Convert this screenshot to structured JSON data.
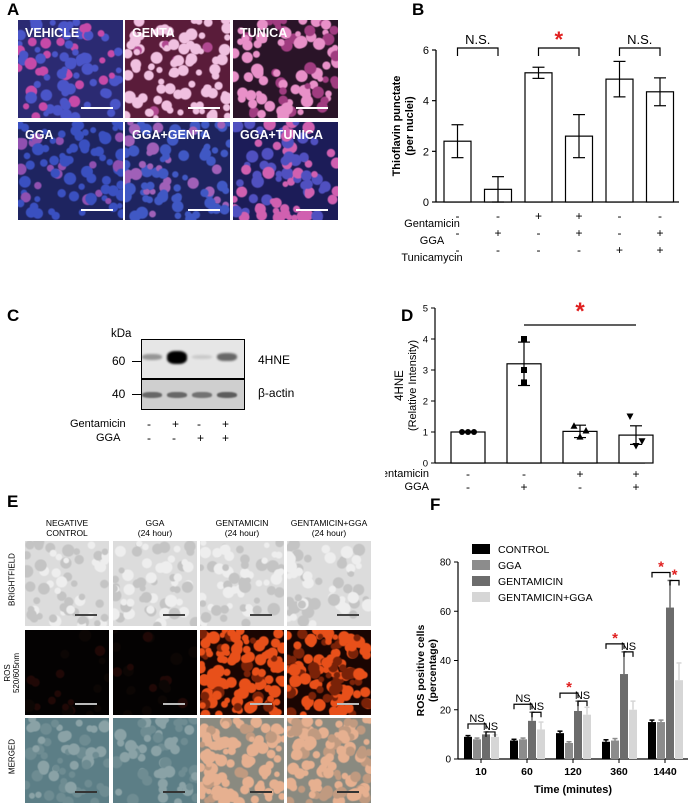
{
  "panel_a": {
    "label": "A",
    "tiles": [
      {
        "caption": "VEHICLE",
        "bg": "#2b2a72",
        "cells": "#4a55c8",
        "stain": "#c64aa8",
        "density": 0.25
      },
      {
        "caption": "GENTA",
        "bg": "#5a1c3a",
        "cells": "#b04890",
        "stain": "#f0c0e0",
        "density": 0.9
      },
      {
        "caption": "TUNICA",
        "bg": "#2a1428",
        "cells": "#a03c80",
        "stain": "#e890c8",
        "density": 0.7
      },
      {
        "caption": "GGA",
        "bg": "#1e2460",
        "cells": "#3a50c0",
        "stain": "#9050b0",
        "density": 0.2
      },
      {
        "caption": "GGA+GENTA",
        "bg": "#1e2460",
        "cells": "#4058c4",
        "stain": "#a060b8",
        "density": 0.25
      },
      {
        "caption": "GGA+TUNICA",
        "bg": "#1c1c58",
        "cells": "#5050c0",
        "stain": "#d060b0",
        "density": 0.5
      }
    ]
  },
  "panel_b": {
    "label": "B",
    "ylabel": "Thioflavin punctate\n(per nuclei)",
    "sig_labels": [
      "N.S.",
      "*",
      "N.S."
    ],
    "row_labels": [
      "Gentamicin",
      "GGA",
      "Tunicamycin"
    ],
    "signs": [
      [
        "-",
        "-",
        "+",
        "+",
        "-",
        "-"
      ],
      [
        "-",
        "+",
        "-",
        "+",
        "-",
        "+"
      ],
      [
        "-",
        "-",
        "-",
        "-",
        "+",
        "+"
      ]
    ]
  },
  "panel_c": {
    "label": "C",
    "kda_label": "kDa",
    "marker_60": "60",
    "marker_40": "40",
    "band_4hne": "4HNE",
    "band_actin": "β-actin",
    "row_labels": [
      "Gentamicin",
      "GGA"
    ],
    "signs": [
      [
        "-",
        "+",
        "-",
        "+"
      ],
      [
        "-",
        "-",
        "+",
        "+"
      ]
    ]
  },
  "panel_d": {
    "label": "D",
    "ylabel_1": "4HNE",
    "ylabel_2": "(Relative Intensity)",
    "sig_label": "*",
    "row_labels": [
      "Gentamicin",
      "GGA"
    ],
    "signs": [
      [
        "-",
        "-",
        "+",
        "+"
      ],
      [
        "-",
        "+",
        "-",
        "+"
      ]
    ]
  },
  "panel_e": {
    "label": "E",
    "col_labels": [
      "NEGATIVE\nCONTROL",
      "GGA\n(24 hour)",
      "GENTAMICIN\n(24 hour)",
      "GENTAMICIN+GGA\n(24 hour)"
    ],
    "row_labels": [
      "BRIGHTFIELD",
      "ROS\n520/605nm",
      "MERGED"
    ],
    "ros_intensity": [
      0.02,
      0.03,
      0.85,
      0.6
    ]
  },
  "panel_f": {
    "label": "F",
    "legend": [
      "CONTROL",
      "GGA",
      "GENTAMICIN",
      "GENTAMICIN+GGA"
    ],
    "ylabel": "ROS positive cells\n(percentage)",
    "xlabel": "Time (minutes)",
    "ns_label": "NS",
    "star_label": "*"
  },
  "chart_data": [
    {
      "type": "bar",
      "panel": "B",
      "ylabel": "Thioflavin punctate (per nuclei)",
      "ylim": [
        0,
        6
      ],
      "yticks": [
        "0",
        "2",
        "4",
        "6"
      ],
      "values": [
        2.4,
        0.5,
        5.1,
        2.6,
        4.85,
        4.35
      ],
      "errors": [
        0.65,
        0.5,
        0.22,
        0.85,
        0.7,
        0.55
      ],
      "significance": [
        {
          "pair": [
            0,
            1
          ],
          "label": "N.S."
        },
        {
          "pair": [
            2,
            3
          ],
          "label": "*"
        },
        {
          "pair": [
            4,
            5
          ],
          "label": "N.S."
        }
      ]
    },
    {
      "type": "bar",
      "panel": "D",
      "ylabel": "4HNE (Relative Intensity)",
      "ylim": [
        0,
        5
      ],
      "yticks": [
        "0",
        "1",
        "2",
        "3",
        "4",
        "5"
      ],
      "values": [
        1.0,
        3.2,
        1.02,
        0.9
      ],
      "errors": [
        0.02,
        0.7,
        0.2,
        0.3
      ],
      "points": [
        [
          1.0,
          1.0,
          1.0
        ],
        [
          4.0,
          3.0,
          2.6
        ],
        [
          1.2,
          0.85,
          1.05
        ],
        [
          1.5,
          0.55,
          0.7
        ]
      ],
      "markers": [
        "circle",
        "square",
        "triangle-up",
        "triangle-down"
      ],
      "significance": [
        {
          "pair": [
            1,
            3
          ],
          "label": "*"
        }
      ]
    },
    {
      "type": "bar",
      "panel": "F",
      "categories": [
        "10",
        "60",
        "120",
        "360",
        "1440"
      ],
      "xlabel": "Time (minutes)",
      "ylabel": "ROS positive cells (percentage)",
      "ylim": [
        0,
        80
      ],
      "yticks": [
        "0",
        "20",
        "40",
        "60",
        "80"
      ],
      "series": [
        {
          "name": "CONTROL",
          "color": "#000000",
          "values": [
            9,
            7.5,
            10.5,
            7,
            15
          ],
          "errors": [
            0.5,
            0.5,
            0.8,
            0.8,
            0.8
          ]
        },
        {
          "name": "GGA",
          "color": "#8c8c8c",
          "values": [
            8,
            8,
            6.5,
            7.5,
            15
          ],
          "errors": [
            0.5,
            0.5,
            0.5,
            0.8,
            0.8
          ]
        },
        {
          "name": "GENTAMICIN",
          "color": "#6c6c6c",
          "values": [
            10,
            15.5,
            19.5,
            34.5,
            61.5
          ],
          "errors": [
            1,
            3.5,
            4,
            9,
            11
          ]
        },
        {
          "name": "GENTAMICIN+GGA",
          "color": "#d6d6d6",
          "values": [
            9,
            12,
            18,
            20,
            32
          ],
          "errors": [
            0.8,
            3,
            3,
            3.5,
            7
          ]
        }
      ],
      "annotations": [
        {
          "category": "10",
          "brackets": [
            "NS",
            "NS"
          ]
        },
        {
          "category": "60",
          "brackets": [
            "NS",
            "NS"
          ]
        },
        {
          "category": "120",
          "brackets": [
            "*",
            "NS"
          ]
        },
        {
          "category": "360",
          "brackets": [
            "*",
            "NS"
          ]
        },
        {
          "category": "1440",
          "brackets": [
            "*",
            "*"
          ]
        }
      ]
    }
  ]
}
